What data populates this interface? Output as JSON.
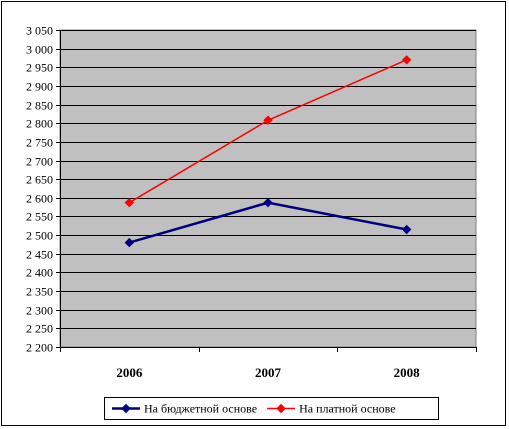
{
  "chart_data": {
    "type": "line",
    "title": "",
    "xlabel": "",
    "ylabel": "",
    "categories": [
      "2006",
      "2007",
      "2008"
    ],
    "series": [
      {
        "name": "На бюджетной основе",
        "values": [
          2480,
          2587,
          2515
        ],
        "color": "#000080"
      },
      {
        "name": "На платной основе",
        "values": [
          2587,
          2808,
          2970
        ],
        "color": "#ff0000"
      }
    ],
    "ylim": [
      2200,
      3050
    ],
    "ytick_step": 50,
    "ytick_labels": [
      "2 200",
      "2 250",
      "2 300",
      "2 350",
      "2 400",
      "2 450",
      "2 500",
      "2 550",
      "2 600",
      "2 650",
      "2 700",
      "2 750",
      "2 800",
      "2 850",
      "2 900",
      "2 950",
      "3 000",
      "3 050"
    ],
    "grid": true,
    "plot_background": "#c0c0c0",
    "legend_position": "bottom"
  }
}
